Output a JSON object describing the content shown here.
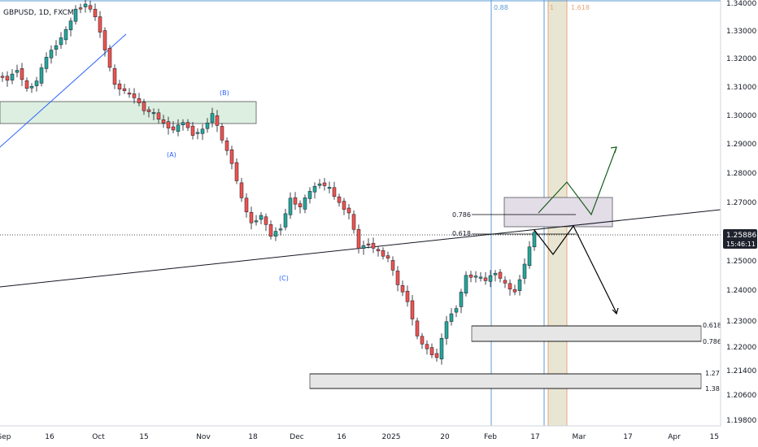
{
  "chart_data": {
    "type": "candlestick",
    "title": "GBPUSD, 1D, FXCM",
    "ylim": [
      1.196,
      1.341
    ],
    "y_ticks": [
      "1.34000",
      "1.33000",
      "1.32000",
      "1.31000",
      "1.30000",
      "1.29000",
      "1.28000",
      "1.27000",
      "1.26000",
      "1.25000",
      "1.24000",
      "1.23000",
      "1.22000",
      "1.21400",
      "1.20600",
      "1.19800"
    ],
    "x_ticks": [
      "Sep",
      "16",
      "Oct",
      "15",
      "Nov",
      "18",
      "Dec",
      "16",
      "2025",
      "20",
      "Feb",
      "17",
      "Mar",
      "17",
      "Apr",
      "15"
    ],
    "last_price": "1.25886",
    "countdown": "15:46:11",
    "wave_labels": [
      "(B)",
      "(A)",
      "(C)"
    ],
    "fib_levels": [
      {
        "label": "0.786",
        "price": 1.2645
      },
      {
        "label": "0.618",
        "price": 1.2615
      },
      {
        "label": "0.618",
        "price": 1.229
      },
      {
        "label": "0.786",
        "price": 1.2235
      },
      {
        "label": "1.27",
        "price": 1.214
      },
      {
        "label": "1.38",
        "price": 1.2085
      }
    ],
    "time_fib_labels": [
      "0.88",
      "1",
      "1.618"
    ],
    "zones": [
      {
        "name": "resistance-zone-september",
        "price_top": 1.305,
        "price_bottom": 1.2975
      },
      {
        "name": "target-zone-upper",
        "price_top": 1.272,
        "price_bottom": 1.2615
      },
      {
        "name": "support-zone-lower",
        "price_top": 1.214,
        "price_bottom": 1.2085
      }
    ],
    "colors": {
      "up": "#26a69a",
      "down": "#ef5350",
      "trend": "#000000",
      "axis": "#131722",
      "price_tag": "#1e222d"
    }
  }
}
